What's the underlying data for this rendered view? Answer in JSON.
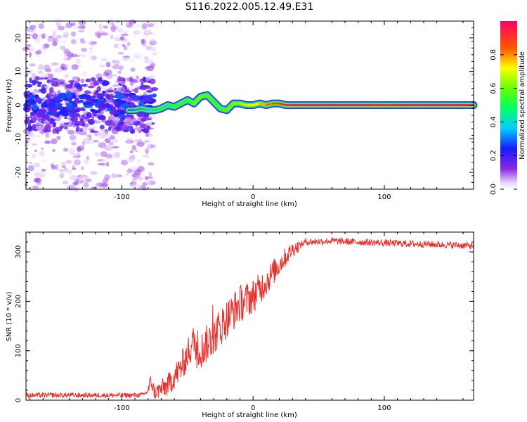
{
  "title": "S116.2022.005.12.49.E31",
  "colors": {
    "snr_line": "#e8312c",
    "ridge": "#ff1a3c",
    "scatter": "#5a10e0"
  },
  "chart_data": [
    {
      "type": "heatmap",
      "name": "spectrogram",
      "xlabel": "Height of straight line (km)",
      "ylabel": "Frequency (Hz)",
      "xlim": [
        -173,
        168
      ],
      "ylim": [
        -25,
        25
      ],
      "x_ticks": [
        "-100",
        "0",
        "100"
      ],
      "x_tick_values": [
        -100,
        0,
        100
      ],
      "y_ticks": [
        "-20",
        "-10",
        "0",
        "10",
        "20"
      ],
      "y_tick_values": [
        -20,
        -10,
        0,
        10,
        20
      ],
      "colorbar": {
        "label": "Normalized spectral amplitude",
        "range": [
          0,
          1
        ],
        "ticks": [
          "0.0",
          "0.2",
          "0.4",
          "0.6",
          "0.8"
        ],
        "tick_values": [
          0.0,
          0.2,
          0.4,
          0.6,
          0.8
        ]
      },
      "ridge": {
        "x": [
          -95,
          -90,
          -85,
          -80,
          -75,
          -70,
          -65,
          -60,
          -55,
          -50,
          -45,
          -40,
          -35,
          -30,
          -25,
          -20,
          -15,
          -10,
          -5,
          0,
          5,
          10,
          15,
          20,
          25,
          30,
          60,
          90,
          100,
          110,
          140,
          168
        ],
        "y": [
          -1.5,
          -1.5,
          -1.0,
          -1.5,
          -1.5,
          -1.0,
          0.0,
          -0.5,
          0.5,
          1.5,
          0.5,
          2.5,
          3.0,
          1.0,
          -1.0,
          -1.5,
          0.5,
          0.5,
          0.0,
          0.0,
          0.5,
          0.0,
          0.5,
          0.5,
          0.0,
          0.0,
          0.0,
          0.0,
          0.0,
          0.0,
          0.0,
          0.0
        ],
        "amplitude": [
          0.3,
          0.3,
          0.35,
          0.35,
          0.4,
          0.45,
          0.4,
          0.5,
          0.45,
          0.5,
          0.55,
          0.6,
          0.55,
          0.5,
          0.5,
          0.55,
          0.6,
          0.65,
          0.7,
          0.7,
          0.75,
          0.8,
          0.85,
          0.9,
          0.95,
          1.0,
          1.0,
          1.0,
          0.95,
          1.0,
          1.0,
          1.0
        ]
      },
      "scatter_region": {
        "x_range": [
          -173,
          -75
        ],
        "y_range": [
          -25,
          25
        ],
        "core_y_range": [
          -8,
          8
        ],
        "amplitude": 0.2
      }
    },
    {
      "type": "line",
      "name": "snr",
      "xlabel": "Height of straight line (km)",
      "ylabel": "SNR (10 * v/v)",
      "xlim": [
        -173,
        168
      ],
      "ylim": [
        0,
        340
      ],
      "x_ticks": [
        "-100",
        "0",
        "100"
      ],
      "x_tick_values": [
        -100,
        0,
        100
      ],
      "y_ticks": [
        "0",
        "100",
        "200",
        "300"
      ],
      "y_tick_values": [
        0,
        100,
        200,
        300
      ],
      "trend": {
        "x": [
          -173,
          -120,
          -85,
          -80,
          -78,
          -75,
          -65,
          -55,
          -45,
          -40,
          -30,
          -20,
          -10,
          0,
          10,
          20,
          30,
          40,
          60,
          100,
          140,
          168
        ],
        "y": [
          10,
          10,
          10,
          18,
          40,
          15,
          30,
          65,
          120,
          100,
          130,
          165,
          195,
          210,
          240,
          275,
          305,
          320,
          322,
          318,
          315,
          312
        ]
      }
    }
  ]
}
